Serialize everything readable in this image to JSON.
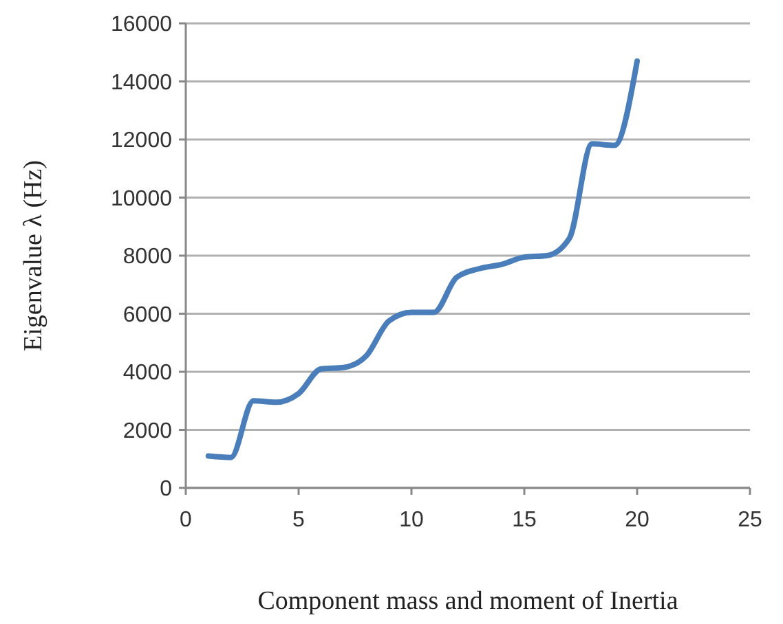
{
  "chart_data": {
    "type": "line",
    "xlabel": "Component mass and moment of Inertia",
    "ylabel": "Eigenvalue λ (Hz)",
    "x": [
      1,
      2,
      3,
      4,
      5,
      6,
      7,
      8,
      9,
      10,
      11,
      12,
      13,
      14,
      15,
      16,
      17,
      18,
      19,
      20
    ],
    "series": [
      {
        "color": "#4a7ebb",
        "values": [
          1100,
          1050,
          3000,
          2950,
          3250,
          4100,
          4150,
          4550,
          5750,
          6050,
          6050,
          7250,
          7550,
          7700,
          7950,
          8000,
          8600,
          11850,
          11800,
          14700
        ]
      }
    ],
    "xlim": [
      0,
      25
    ],
    "xticks": [
      0,
      5,
      10,
      15,
      20,
      25
    ],
    "ylim": [
      0,
      16000
    ],
    "yticks": [
      0,
      2000,
      4000,
      6000,
      8000,
      10000,
      12000,
      14000,
      16000
    ],
    "grid": "y",
    "marker": "none",
    "line_style": "solid"
  }
}
